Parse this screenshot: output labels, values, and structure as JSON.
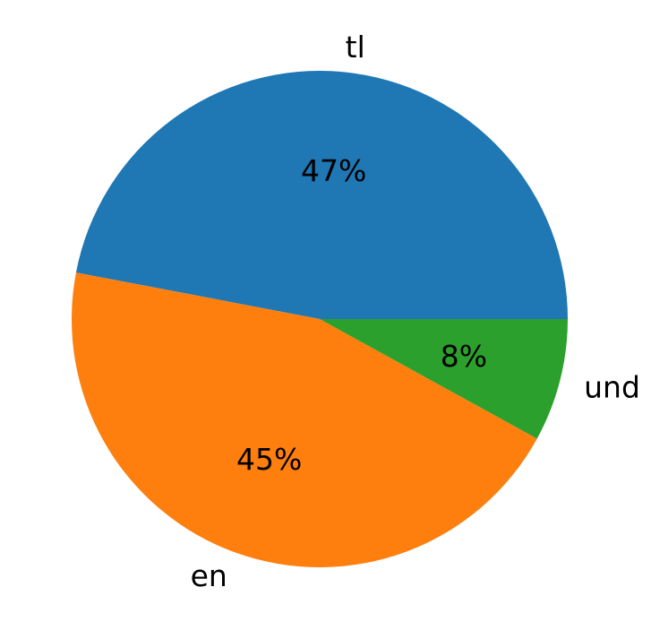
{
  "chart_data": {
    "type": "pie",
    "title": "",
    "categories": [
      "tl",
      "en",
      "und"
    ],
    "values": [
      47,
      45,
      8
    ],
    "percent_labels": [
      "47%",
      "45%",
      "8%"
    ],
    "colors": [
      "#1f77b4",
      "#ff7f0e",
      "#2ca02c"
    ],
    "start_angle_deg": 0,
    "direction": "counterclockwise",
    "legend": "none"
  }
}
